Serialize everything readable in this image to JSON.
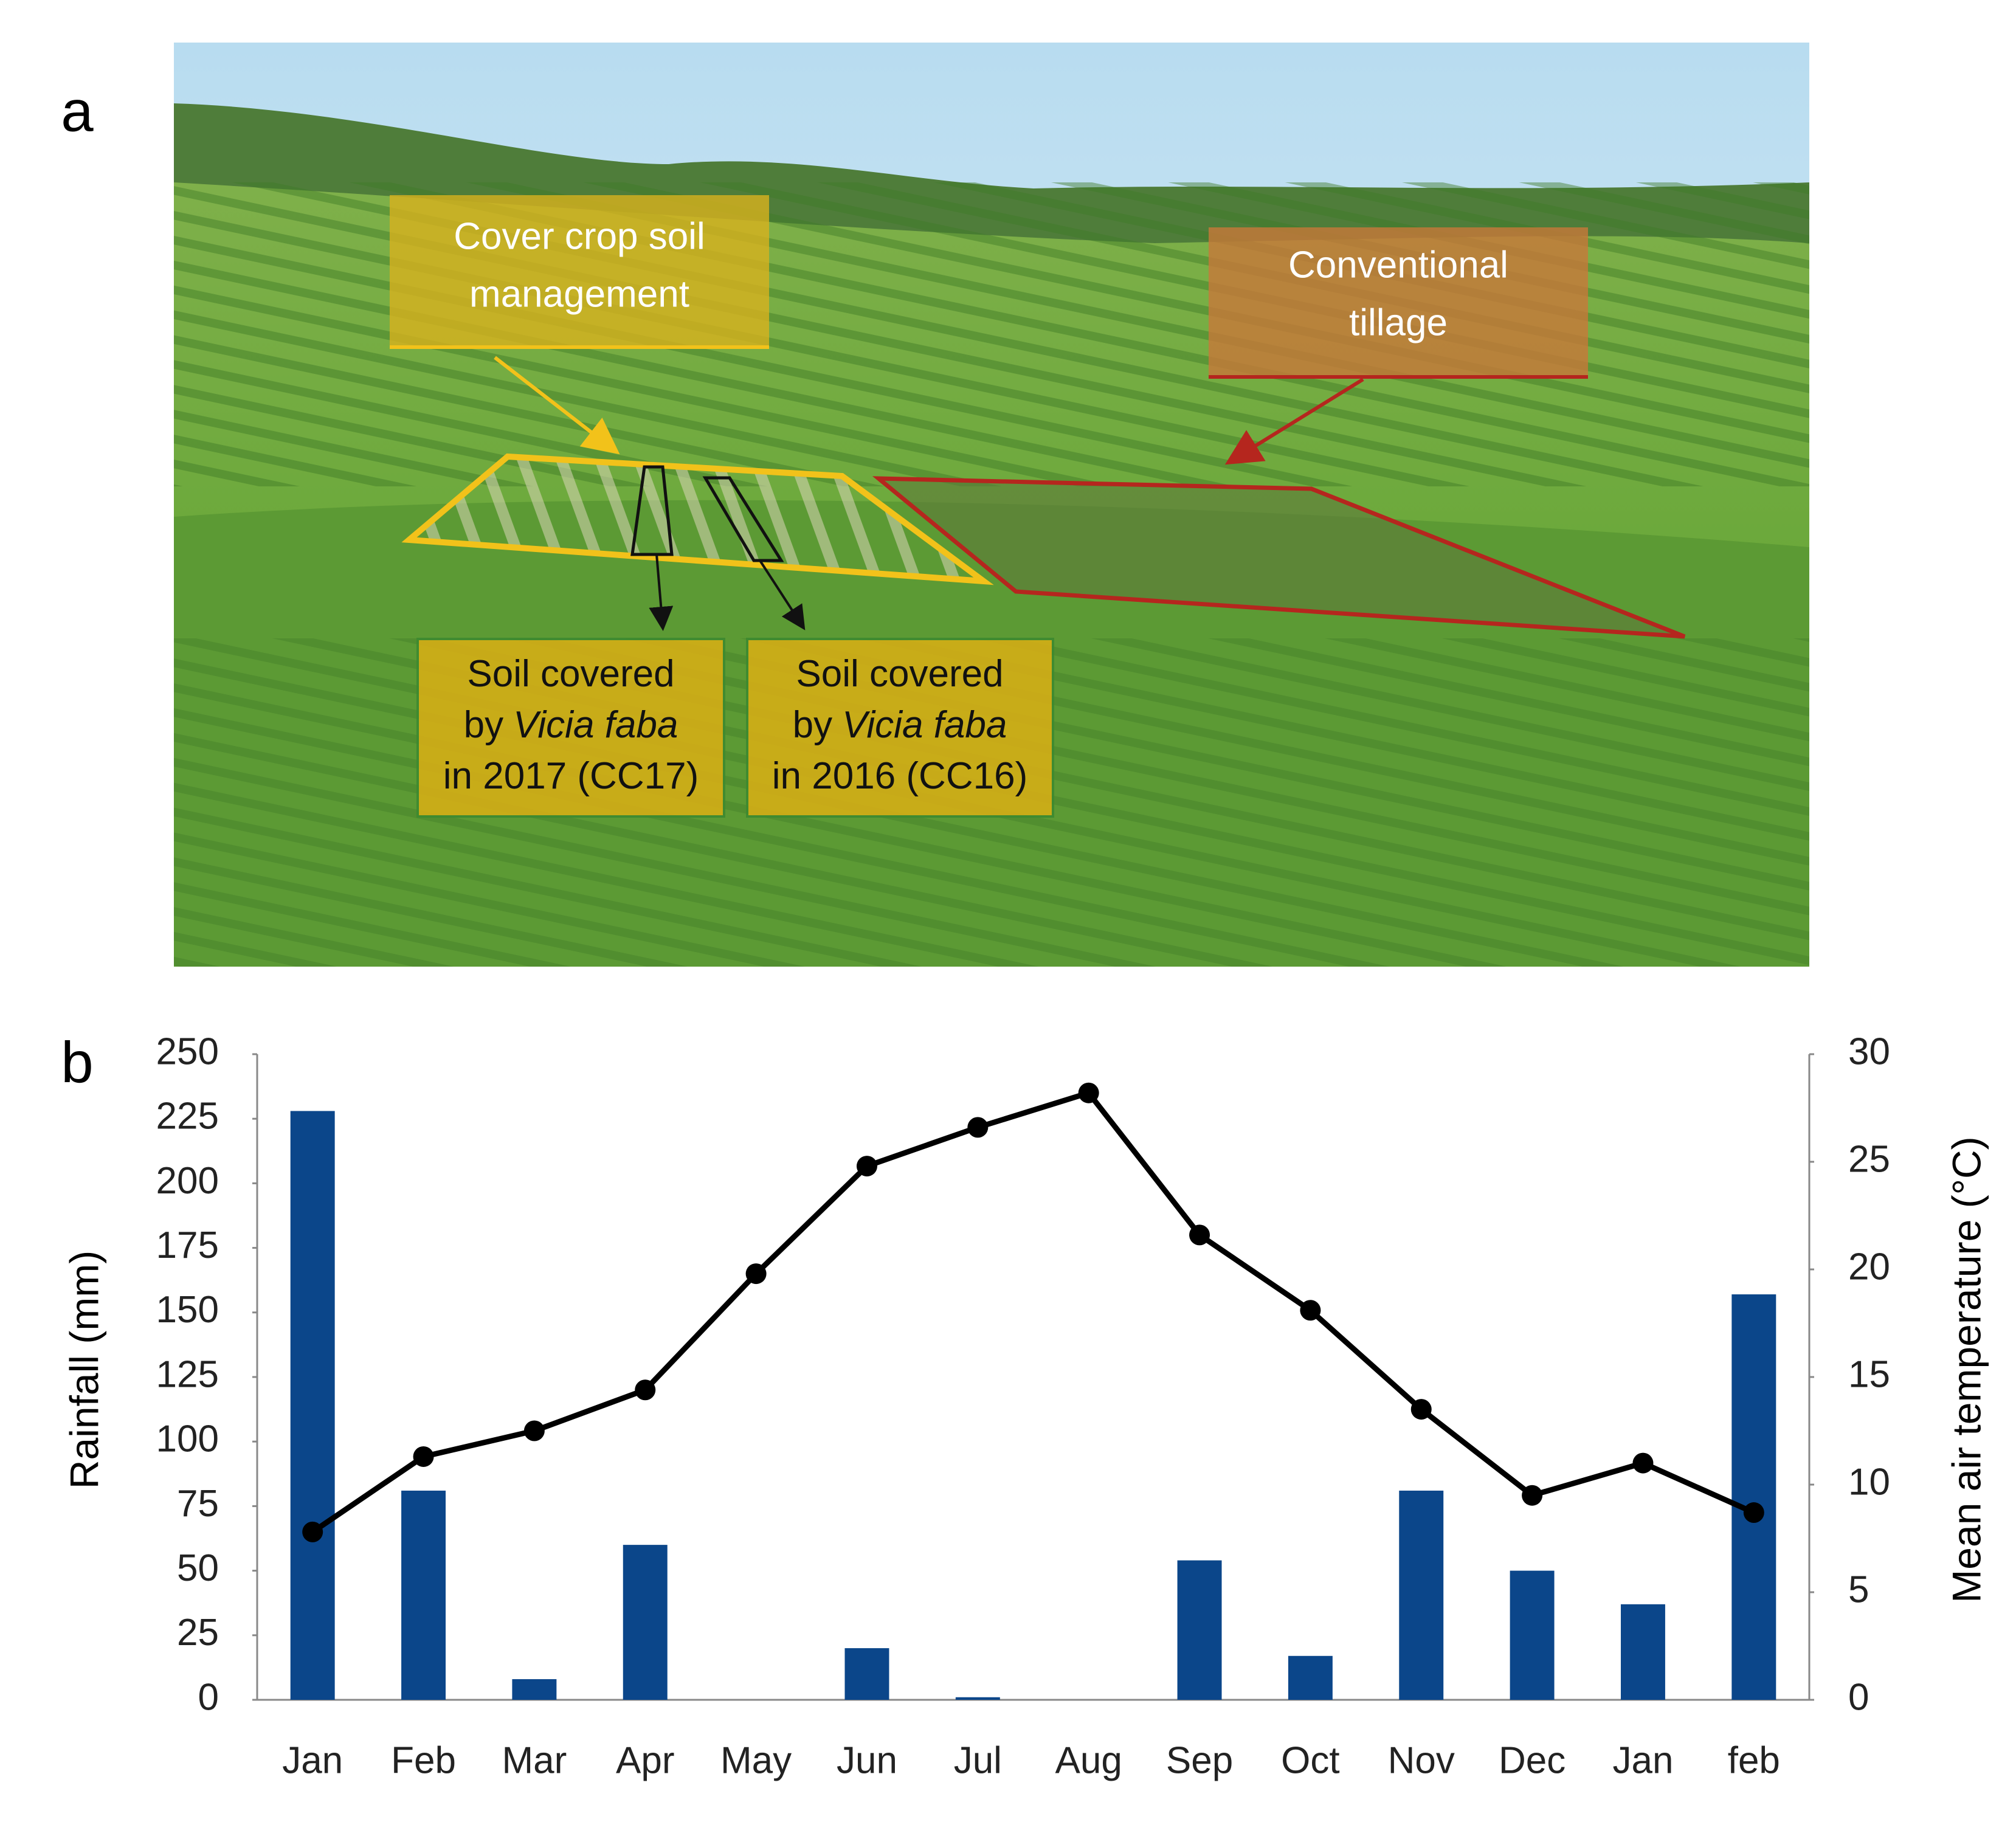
{
  "figure": {
    "photo_label": "a",
    "cover_crop_box": [
      "Cover crop soil",
      "management"
    ],
    "tillage_box": [
      "Conventional",
      "tillage"
    ],
    "cc17_box": [
      {
        "text": "Soil covered"
      },
      {
        "text": "by",
        "italic": "Vicia faba"
      },
      {
        "text": "in 2017 (CC17)"
      }
    ],
    "cc16_box": [
      {
        "text": "Soil covered"
      },
      {
        "text": "by",
        "italic": "Vicia faba"
      },
      {
        "text": "in 2016 (CC16)"
      }
    ]
  },
  "chart_data": {
    "type": "bar_line",
    "panel_label": "b",
    "ylabel": "Rainfall (mm)",
    "y2label": "Mean air temperature (°C)",
    "categories": [
      "Jan",
      "Feb",
      "Mar",
      "Apr",
      "May",
      "Jun",
      "Jul",
      "Aug",
      "Sep",
      "Oct",
      "Nov",
      "Dec",
      "Jan",
      "feb"
    ],
    "series": [
      {
        "type": "bar",
        "color": "#0b468a",
        "values": [
          228,
          81,
          8,
          60,
          0,
          20,
          1,
          0,
          54,
          17,
          81,
          50,
          37,
          157
        ]
      },
      {
        "type": "line",
        "color": "#000000",
        "axis": "y2",
        "values": [
          7.8,
          11.3,
          12.5,
          14.4,
          19.8,
          24.8,
          26.6,
          28.2,
          21.6,
          18.1,
          13.5,
          9.5,
          11,
          8.7
        ]
      }
    ],
    "ylim": [
      0,
      250
    ],
    "yticks": [
      0,
      25,
      50,
      75,
      100,
      125,
      150,
      175,
      200,
      225,
      250
    ],
    "y2lim": [
      0,
      30
    ],
    "y2ticks": [
      0,
      5,
      10,
      15,
      20,
      25,
      30
    ],
    "grid": false
  }
}
